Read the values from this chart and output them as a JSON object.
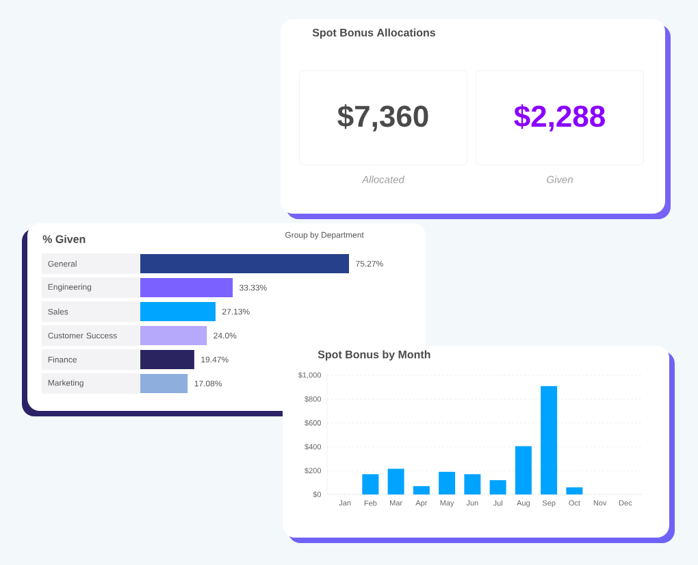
{
  "chart_data": [
    {
      "type": "other",
      "title": "Spot Bonus Allocations",
      "annotations": [
        "$7,360",
        "Allocated",
        "$2,288",
        "Given"
      ]
    },
    {
      "type": "bar",
      "title": "% Given",
      "orientation": "horizontal",
      "categories": [
        "General",
        "Engineering",
        "Sales",
        "Customer Success",
        "Finance",
        "Marketing"
      ],
      "values": [
        75.27,
        33.33,
        27.13,
        24.0,
        19.47,
        17.08
      ],
      "colors": [
        "#26408b",
        "#7b61ff",
        "#00a5ff",
        "#b6a8fb",
        "#2a2460",
        "#8eaede"
      ],
      "value_labels": [
        "75.27%",
        "33.33%",
        "27.13%",
        "24.0%",
        "19.47%",
        "17.08%"
      ],
      "tick_labels": "y",
      "annotations": [
        "Group by Department"
      ]
    },
    {
      "type": "bar",
      "title": "Spot Bonus by Month",
      "categories": [
        "Jan",
        "Feb",
        "Mar",
        "Apr",
        "May",
        "Jun",
        "Jul",
        "Aug",
        "Sep",
        "Oct",
        "Nov",
        "Dec"
      ],
      "values": [
        0,
        170,
        215,
        70,
        190,
        170,
        120,
        405,
        910,
        60,
        0,
        0
      ],
      "color": "#00a3ff",
      "ylim": [
        0,
        1000
      ],
      "yticks": [
        {
          "value": 0,
          "label": "$0"
        },
        {
          "value": 200,
          "label": "$200"
        },
        {
          "value": 400,
          "label": "$400"
        },
        {
          "value": 600,
          "label": "$600"
        },
        {
          "value": 800,
          "label": "$800"
        },
        {
          "value": 1000,
          "label": "$1,000"
        }
      ],
      "grid": "y"
    }
  ]
}
